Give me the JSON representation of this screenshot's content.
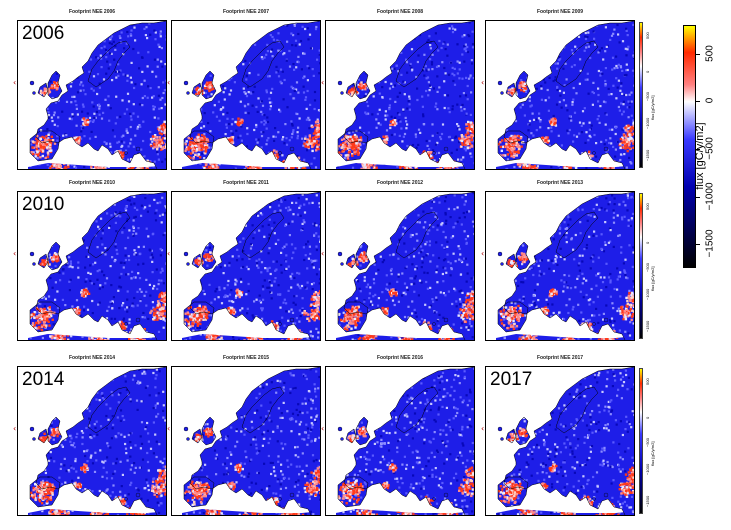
{
  "figure": {
    "panels": [
      {
        "title": "Footprint NEE 2006",
        "year_label": "2006"
      },
      {
        "title": "Footprint NEE 2007",
        "year_label": ""
      },
      {
        "title": "Footprint NEE 2008",
        "year_label": ""
      },
      {
        "title": "Footprint NEE 2009",
        "year_label": "",
        "has_mini_colorbar": true
      },
      {
        "title": "Footprint NEE 2010",
        "year_label": "2010"
      },
      {
        "title": "Footprint NEE 2011",
        "year_label": ""
      },
      {
        "title": "Footprint NEE 2012",
        "year_label": ""
      },
      {
        "title": "Footprint NEE 2013",
        "year_label": "",
        "has_mini_colorbar": true
      },
      {
        "title": "Footprint NEE 2014",
        "year_label": "2014"
      },
      {
        "title": "Footprint NEE 2015",
        "year_label": ""
      },
      {
        "title": "Footprint NEE 2016",
        "year_label": ""
      },
      {
        "title": "Footprint NEE 2017",
        "year_label": "2017",
        "has_mini_colorbar": true
      }
    ]
  },
  "colorbar": {
    "title": "flux [gC/y/m2]",
    "ticks": [
      "500",
      "0",
      "−500",
      "−1000",
      "−1500"
    ],
    "tick_values": [
      500,
      0,
      -500,
      -1000,
      -1500
    ],
    "range": [
      -1750,
      800
    ],
    "colors": {
      "max": "#ffff00",
      "high": "#ff2a00",
      "mid_pos": "#ff8080",
      "zero": "#ffffff",
      "mid_neg": "#3a3aff",
      "low": "#0000b0",
      "min": "#000000"
    }
  },
  "mini_colorbar": {
    "ticks": [
      "500",
      "0",
      "−500",
      "−1000",
      "−1500"
    ],
    "label": "flux [gC/y/m2]"
  }
}
